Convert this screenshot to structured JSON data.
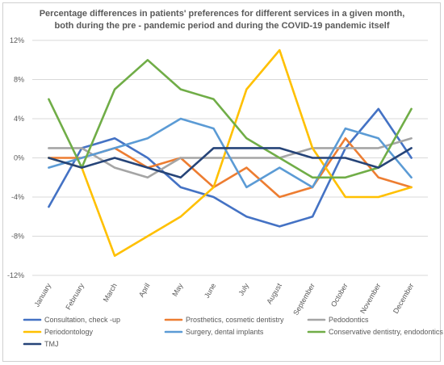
{
  "chart_data": {
    "type": "line",
    "title": "Percentage differences in patients' preferences for different services in a given month, both during the pre - pandemic period and during the COVID-19 pandemic itself",
    "xlabel": "",
    "ylabel": "",
    "x": [
      "January",
      "February",
      "March",
      "April",
      "May",
      "June",
      "July",
      "August",
      "September",
      "October",
      "November",
      "December"
    ],
    "yticks": [
      "-12%",
      "-8%",
      "-4%",
      "0%",
      "4%",
      "8%",
      "12%"
    ],
    "ylim": [
      -12,
      12
    ],
    "grid": true,
    "legend_position": "bottom",
    "series": [
      {
        "name": "Consultation, check -up",
        "color": "#4472c4",
        "values": [
          -5,
          1,
          2,
          0,
          -3,
          -4,
          -6,
          -7,
          -6,
          1,
          5,
          0
        ]
      },
      {
        "name": "Prosthetics, cosmetic dentistry",
        "color": "#ed7d31",
        "values": [
          0,
          0,
          1,
          -1,
          0,
          -3,
          -1,
          -4,
          -3,
          2,
          -2,
          -3
        ]
      },
      {
        "name": "Pedodontics",
        "color": "#a5a5a5",
        "values": [
          1,
          1,
          -1,
          -2,
          0,
          0,
          0,
          0,
          1,
          1,
          1,
          2
        ]
      },
      {
        "name": "Periodontology",
        "color": "#ffc000",
        "values": [
          0,
          -1,
          -10,
          -8,
          -6,
          -3,
          7,
          11,
          1,
          -4,
          -4,
          -3
        ]
      },
      {
        "name": "Surgery, dental implants",
        "color": "#5b9bd5",
        "values": [
          -1,
          0,
          1,
          2,
          4,
          3,
          -3,
          -1,
          -3,
          3,
          2,
          -2
        ]
      },
      {
        "name": "Conservative dentistry, endodontics",
        "color": "#70ad47",
        "values": [
          6,
          -1,
          7,
          10,
          7,
          6,
          2,
          0,
          -2,
          -2,
          -1,
          5
        ]
      },
      {
        "name": "TMJ",
        "color": "#264478",
        "values": [
          0,
          -1,
          0,
          -1,
          -2,
          1,
          1,
          1,
          0,
          0,
          -1,
          1
        ]
      }
    ]
  }
}
